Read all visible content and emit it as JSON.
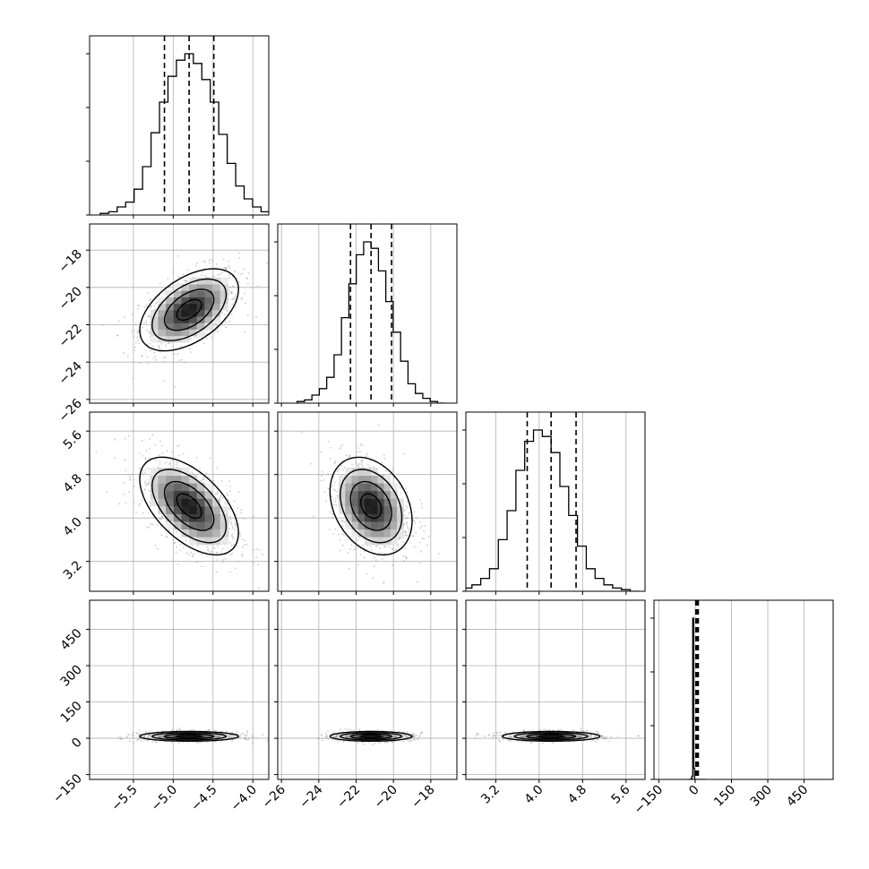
{
  "chart_data": {
    "type": "corner",
    "grid": true,
    "parameters": [
      {
        "ticks": [
          -5.5,
          -5.0,
          -4.5,
          -4.0
        ],
        "tick_labels": [
          "−5.5",
          "−5.0",
          "−4.5",
          "−4.0"
        ],
        "range": [
          -6.05,
          -3.8
        ],
        "median": -4.8,
        "q16": -5.11,
        "q84": -4.49,
        "sd": 0.31
      },
      {
        "ticks": [
          -26,
          -24,
          -22,
          -20,
          -18
        ],
        "tick_labels": [
          "−26",
          "−24",
          "−22",
          "−20",
          "−18"
        ],
        "range": [
          -26.2,
          -16.6
        ],
        "median": -21.2,
        "q16": -22.3,
        "q84": -20.1,
        "sd": 1.1
      },
      {
        "ticks": [
          3.2,
          4.0,
          4.8,
          5.6
        ],
        "tick_labels": [
          "3.2",
          "4.0",
          "4.8",
          "5.6"
        ],
        "range": [
          2.65,
          5.95
        ],
        "median": 4.22,
        "q16": 3.78,
        "q84": 4.68,
        "sd": 0.45
      },
      {
        "ticks": [
          -150,
          0,
          150,
          300,
          450
        ],
        "tick_labels": [
          "−150",
          "0",
          "150",
          "300",
          "450"
        ],
        "range": [
          -170,
          570
        ],
        "median": 8,
        "q16": 3,
        "q84": 13,
        "sd": 10
      }
    ],
    "histograms": [
      {
        "counts": [
          0.01,
          0.02,
          0.05,
          0.08,
          0.16,
          0.3,
          0.51,
          0.7,
          0.86,
          0.96,
          1.0,
          0.94,
          0.84,
          0.7,
          0.5,
          0.32,
          0.18,
          0.1,
          0.05,
          0.02,
          0.01
        ]
      },
      {
        "counts": [
          0.01,
          0.02,
          0.05,
          0.09,
          0.16,
          0.3,
          0.53,
          0.74,
          0.92,
          1.0,
          0.96,
          0.82,
          0.63,
          0.44,
          0.26,
          0.12,
          0.06,
          0.03,
          0.01,
          0.0
        ]
      },
      {
        "counts": [
          0.02,
          0.04,
          0.08,
          0.14,
          0.32,
          0.5,
          0.75,
          0.93,
          1.0,
          0.96,
          0.86,
          0.65,
          0.47,
          0.28,
          0.14,
          0.08,
          0.04,
          0.02,
          0.01,
          0.0
        ]
      },
      {
        "counts": [
          0.0,
          0.0,
          0.0,
          0.005,
          0.02,
          1.0,
          0.07,
          0.0,
          0.0,
          0.0,
          0.0,
          0.0,
          0.0,
          0.0,
          0.0,
          0.0,
          0.0,
          0.0,
          0.0,
          0.0
        ]
      }
    ],
    "correlations": {
      "0-1": 0.5,
      "0-2": -0.55,
      "1-2": -0.3,
      "0-3": 0.0,
      "1-3": 0.0,
      "2-3": 0.0
    },
    "colors": {
      "line": "#000000",
      "grid": "#b0b0b0",
      "points": "#9a9a9a"
    }
  }
}
